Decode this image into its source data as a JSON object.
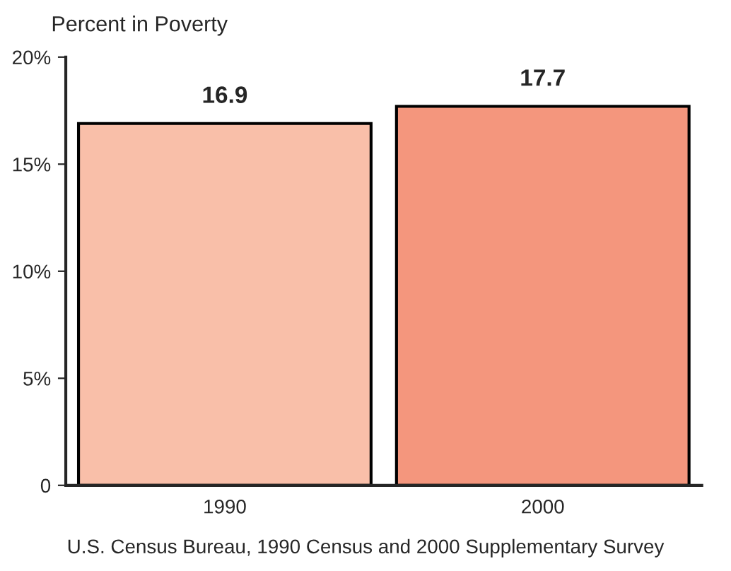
{
  "chart_data": {
    "type": "bar",
    "ylabel": "Percent in Poverty",
    "categories": [
      "1990",
      "2000"
    ],
    "values": [
      16.9,
      17.7
    ],
    "colors": [
      "#f9bfa9",
      "#f4967d"
    ],
    "ylim": [
      0,
      20
    ],
    "yticks": [
      0,
      {
        "value": 5,
        "label": "5%"
      },
      {
        "value": 10,
        "label": "10%"
      },
      {
        "value": 15,
        "label": "15%"
      },
      {
        "value": 20,
        "label": "20%"
      }
    ],
    "data_labels": true,
    "grid": false,
    "legend": false,
    "annotations": [
      "U.S. Census Bureau, 1990 Census and 2000 Supplementary Survey"
    ]
  }
}
